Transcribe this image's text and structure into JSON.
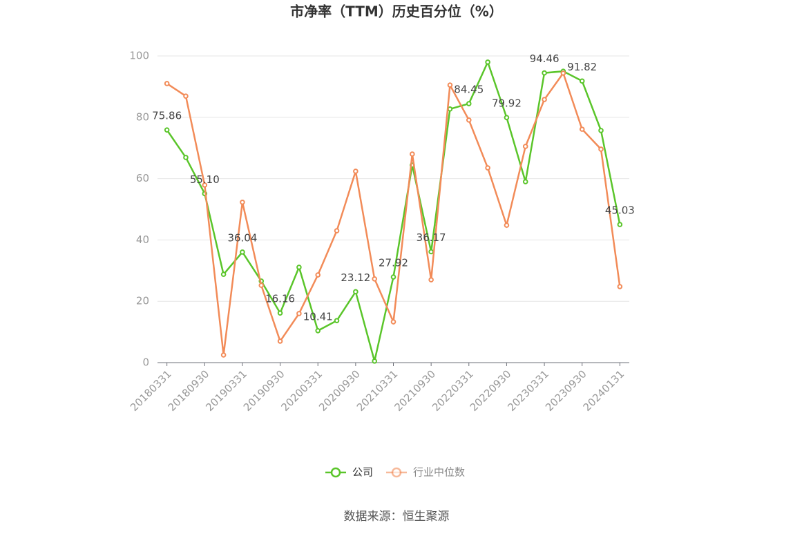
{
  "chart_data": {
    "type": "line",
    "title": "市净率（TTM）历史百分位（%）",
    "categories": [
      "20180331",
      null,
      "20180930",
      null,
      "20190331",
      null,
      "20190930",
      null,
      "20200331",
      null,
      "20200930",
      null,
      "20210331",
      null,
      "20210930",
      null,
      "20220331",
      null,
      "20220930",
      null,
      "20230331",
      null,
      "20230930",
      null,
      "20240131"
    ],
    "series": [
      {
        "name": "公司",
        "color": "#5ac52a",
        "values": [
          75.86,
          66.9,
          55.1,
          28.8,
          36.04,
          26.6,
          16.16,
          31.1,
          10.41,
          13.7,
          23.12,
          0.5,
          27.92,
          64.4,
          36.17,
          82.7,
          84.45,
          98.0,
          79.92,
          59.0,
          94.46,
          95.0,
          91.82,
          75.7,
          45.03
        ],
        "value_labels": [
          "75.86",
          null,
          "55.10",
          null,
          "36.04",
          null,
          "16.16",
          null,
          "10.41",
          null,
          "23.12",
          null,
          "27.92",
          null,
          "36.17",
          null,
          "84.45",
          null,
          "79.92",
          null,
          "94.46",
          null,
          "91.82",
          null,
          "45.03"
        ]
      },
      {
        "name": "行业中位数",
        "color": "#f28b58",
        "values": [
          91.0,
          86.9,
          57.9,
          2.5,
          52.3,
          25.2,
          7.0,
          16.0,
          28.6,
          43.0,
          62.4,
          27.3,
          13.3,
          68.0,
          27.0,
          90.5,
          79.1,
          63.5,
          44.8,
          70.5,
          85.8,
          94.4,
          76.1,
          69.6,
          24.8
        ]
      }
    ],
    "ylim": [
      0,
      100
    ],
    "yticks": [
      0,
      20,
      40,
      60,
      80,
      100
    ],
    "grid": true,
    "source": "数据来源：恒生聚源"
  }
}
